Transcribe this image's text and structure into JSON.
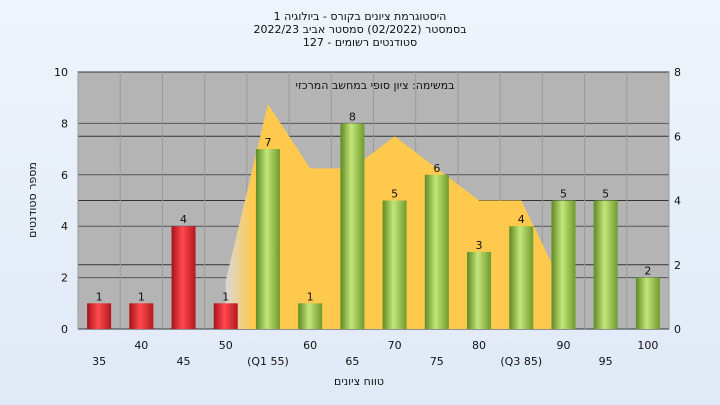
{
  "chart_data": {
    "type": "bar",
    "title_lines": [
      "היסטוגרמת ציונים בקורס - ביולוגיה 1",
      "בסמסטר  (02/2022)  סמסטר אביב 2022/23",
      "סטודנטים רשומים - 127"
    ],
    "annotation": "במשימה: ציון סופי במחשב המרכזי",
    "xlabel": "טווח ציונים",
    "ylabel": "מספר סטודנטים",
    "ylim": [
      0,
      10
    ],
    "y_ticks": [
      "0",
      "2",
      "4",
      "6",
      "8",
      "10"
    ],
    "y2lim": [
      0,
      8
    ],
    "y2_ticks": [
      "0",
      "2",
      "4",
      "6",
      "8"
    ],
    "grid": true,
    "categories": [
      "35",
      "40",
      "45",
      "50",
      "(Q1 55)",
      "60",
      "65",
      "70",
      "75",
      "80",
      "(Q3 85)",
      "90",
      "95",
      "100"
    ],
    "values": [
      1,
      1,
      4,
      1,
      7,
      1,
      8,
      5,
      6,
      3,
      4,
      5,
      5,
      2
    ],
    "value_labels": [
      "1",
      "1",
      "4",
      "1",
      "7",
      "1",
      "8",
      "5",
      "6",
      "3",
      "4",
      "5",
      "5",
      "2"
    ],
    "bar_groups": [
      "fail",
      "fail",
      "fail",
      "fail",
      "pass",
      "pass",
      "pass",
      "pass",
      "pass",
      "pass",
      "pass",
      "pass",
      "pass",
      "pass"
    ],
    "area_series": {
      "x_categories": [
        "50",
        "(Q1 55)",
        "60",
        "65",
        "70",
        "75",
        "80",
        "(Q3 85)",
        "90"
      ],
      "values": [
        1.5,
        7,
        5,
        5,
        6,
        5,
        4,
        4,
        1.3
      ]
    },
    "colors": {
      "fail_bar": "#e52a2e",
      "pass_bar": "#9bc94a",
      "area_fill": "#ffc94d",
      "plot_bg": "#b4b4b4"
    }
  }
}
